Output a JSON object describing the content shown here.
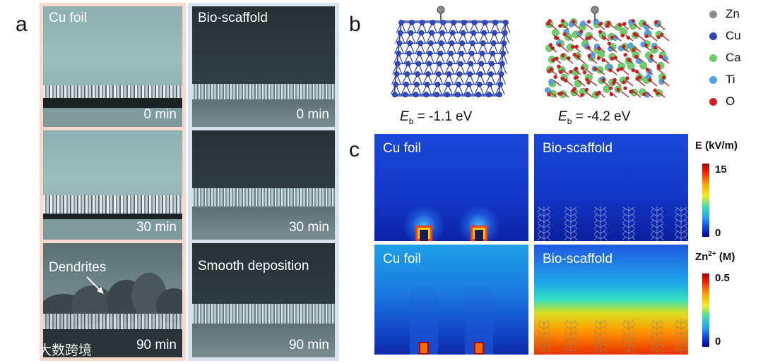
{
  "panel_letters": {
    "a": "a",
    "b": "b",
    "c": "c"
  },
  "panel_a": {
    "cu_foil": {
      "title": "Cu foil",
      "times": [
        "0 min",
        "30 min",
        "90 min"
      ],
      "annotation": "Dendrites"
    },
    "bio_scaffold": {
      "title": "Bio-scaffold",
      "times": [
        "0 min",
        "30 min",
        "90 min"
      ],
      "annotation": "Smooth deposition"
    }
  },
  "panel_b": {
    "cu_eb": {
      "symbol": "E",
      "sub": "b",
      "value": " = -1.1 eV"
    },
    "bio_eb": {
      "symbol": "E",
      "sub": "b",
      "value": " = -4.2 eV"
    },
    "legend": [
      {
        "label": "Zn",
        "color": "#8c8c8c"
      },
      {
        "label": "Cu",
        "color": "#2f48b8"
      },
      {
        "label": "Ca",
        "color": "#6ccf6a"
      },
      {
        "label": "Ti",
        "color": "#4fa3e8"
      },
      {
        "label": "O",
        "color": "#d11d1d"
      }
    ]
  },
  "panel_c": {
    "top": {
      "left_label": "Cu foil",
      "right_label": "Bio-scaffold"
    },
    "bottom": {
      "left_label": "Cu foil",
      "right_label": "Bio-scaffold"
    },
    "colorbar_e": {
      "title": "E (kV/m)",
      "max": "15",
      "min": "0"
    },
    "colorbar_zn": {
      "title_main": "Zn",
      "title_sup": "2+",
      "title_unit": " (M)",
      "max": "0.5",
      "min": "0"
    }
  },
  "watermark": {
    "text": "大数跨境"
  }
}
